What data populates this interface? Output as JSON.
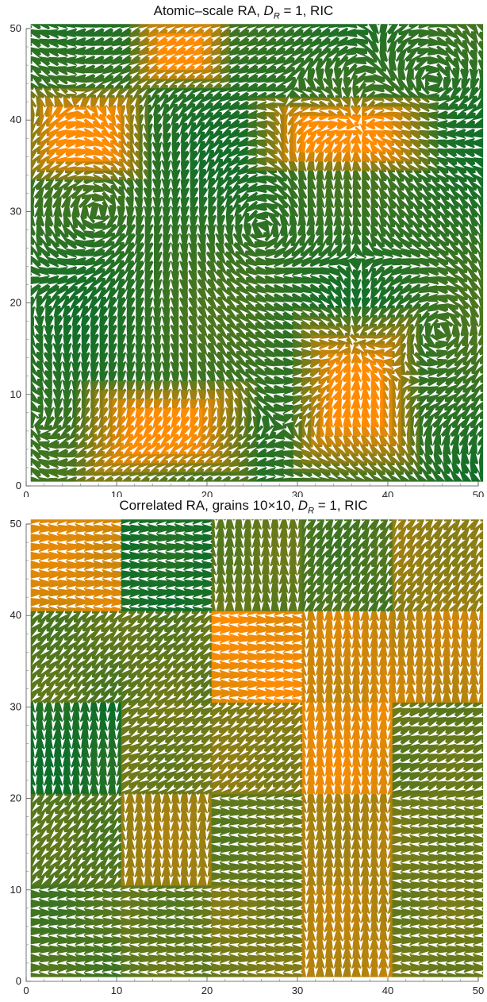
{
  "chart_data": [
    {
      "type": "vector field",
      "title_parts": [
        "Atomic–scale RA,  ",
        "D",
        "R",
        " = 1,  RIC"
      ],
      "xlim": [
        0,
        50
      ],
      "ylim": [
        0,
        50
      ],
      "xticks": [
        "0",
        "10",
        "20",
        "30",
        "40",
        "50"
      ],
      "yticks": [
        "0",
        "10",
        "20",
        "30",
        "40",
        "50"
      ],
      "vector_color": "#ffffff",
      "colormap": {
        "low": "#0b6e2a",
        "high": "#ff8c00"
      },
      "grid_points": [
        1,
        2,
        3,
        4,
        5,
        6,
        7,
        8,
        9,
        10,
        11,
        12,
        13,
        14,
        15,
        16,
        17,
        18,
        19,
        20,
        21,
        22,
        23,
        24,
        25,
        26,
        27,
        28,
        29,
        30,
        31,
        32,
        33,
        34,
        35,
        36,
        37,
        38,
        39,
        40,
        41,
        42,
        43,
        44,
        45,
        46,
        47,
        48,
        49,
        50
      ],
      "features": [
        {
          "kind": "vortex",
          "x": 8,
          "y": 30,
          "sense": "ccw"
        },
        {
          "kind": "vortex",
          "x": 26,
          "y": 28,
          "sense": "cw"
        },
        {
          "kind": "vortex",
          "x": 46,
          "y": 17,
          "sense": "cw"
        },
        {
          "kind": "vortex",
          "x": 45,
          "y": 44,
          "sense": "ccw"
        },
        {
          "kind": "source",
          "x": 36,
          "y": 16
        },
        {
          "kind": "source",
          "x": 37,
          "y": 39
        }
      ],
      "orange_regions": [
        {
          "x": [
            1,
            12
          ],
          "y": [
            35,
            42
          ]
        },
        {
          "x": [
            13,
            21
          ],
          "y": [
            45,
            50
          ]
        },
        {
          "x": [
            31,
            42
          ],
          "y": [
            3,
            18
          ]
        },
        {
          "x": [
            7,
            24
          ],
          "y": [
            2,
            10
          ]
        },
        {
          "x": [
            26,
            44
          ],
          "y": [
            36,
            41
          ]
        }
      ]
    },
    {
      "type": "vector field",
      "title_parts": [
        "Correlated RA,  grains 10×10,  ",
        "D",
        "R",
        " = 1,  RIC"
      ],
      "xlim": [
        0,
        50
      ],
      "ylim": [
        0,
        50
      ],
      "xticks": [
        "0",
        "10",
        "20",
        "30",
        "40",
        "50"
      ],
      "yticks": [
        "0",
        "10",
        "20",
        "30",
        "40",
        "50"
      ],
      "vector_color": "#ffffff",
      "colormap": {
        "low": "#0b6e2a",
        "high": "#ff8c00"
      },
      "grain_size": 10,
      "grains": [
        {
          "gx": 0,
          "gy": 4,
          "angle": 180,
          "c": 0.85
        },
        {
          "gx": 1,
          "gy": 4,
          "angle": 180,
          "c": 0.05
        },
        {
          "gx": 2,
          "gy": 4,
          "angle": 270,
          "c": 0.35
        },
        {
          "gx": 3,
          "gy": 4,
          "angle": 240,
          "c": 0.25
        },
        {
          "gx": 4,
          "gy": 4,
          "angle": 235,
          "c": 0.55
        },
        {
          "gx": 0,
          "gy": 3,
          "angle": 225,
          "c": 0.3
        },
        {
          "gx": 1,
          "gy": 3,
          "angle": 220,
          "c": 0.35
        },
        {
          "gx": 2,
          "gy": 3,
          "angle": 180,
          "c": 0.95
        },
        {
          "gx": 3,
          "gy": 3,
          "angle": 270,
          "c": 0.8
        },
        {
          "gx": 4,
          "gy": 3,
          "angle": 270,
          "c": 0.75
        },
        {
          "gx": 0,
          "gy": 2,
          "angle": 270,
          "c": 0.05
        },
        {
          "gx": 1,
          "gy": 2,
          "angle": 210,
          "c": 0.4
        },
        {
          "gx": 2,
          "gy": 2,
          "angle": 215,
          "c": 0.5
        },
        {
          "gx": 3,
          "gy": 2,
          "angle": 270,
          "c": 0.9
        },
        {
          "gx": 4,
          "gy": 2,
          "angle": 200,
          "c": 0.35
        },
        {
          "gx": 0,
          "gy": 1,
          "angle": 230,
          "c": 0.3
        },
        {
          "gx": 1,
          "gy": 1,
          "angle": 270,
          "c": 0.6
        },
        {
          "gx": 2,
          "gy": 1,
          "angle": 180,
          "c": 0.35
        },
        {
          "gx": 3,
          "gy": 1,
          "angle": 270,
          "c": 0.65
        },
        {
          "gx": 4,
          "gy": 1,
          "angle": 180,
          "c": 0.4
        },
        {
          "gx": 0,
          "gy": 0,
          "angle": 180,
          "c": 0.25
        },
        {
          "gx": 1,
          "gy": 0,
          "angle": 180,
          "c": 0.35
        },
        {
          "gx": 2,
          "gy": 0,
          "angle": 180,
          "c": 0.45
        },
        {
          "gx": 3,
          "gy": 0,
          "angle": 270,
          "c": 0.7
        },
        {
          "gx": 4,
          "gy": 0,
          "angle": 180,
          "c": 0.4
        }
      ]
    }
  ]
}
